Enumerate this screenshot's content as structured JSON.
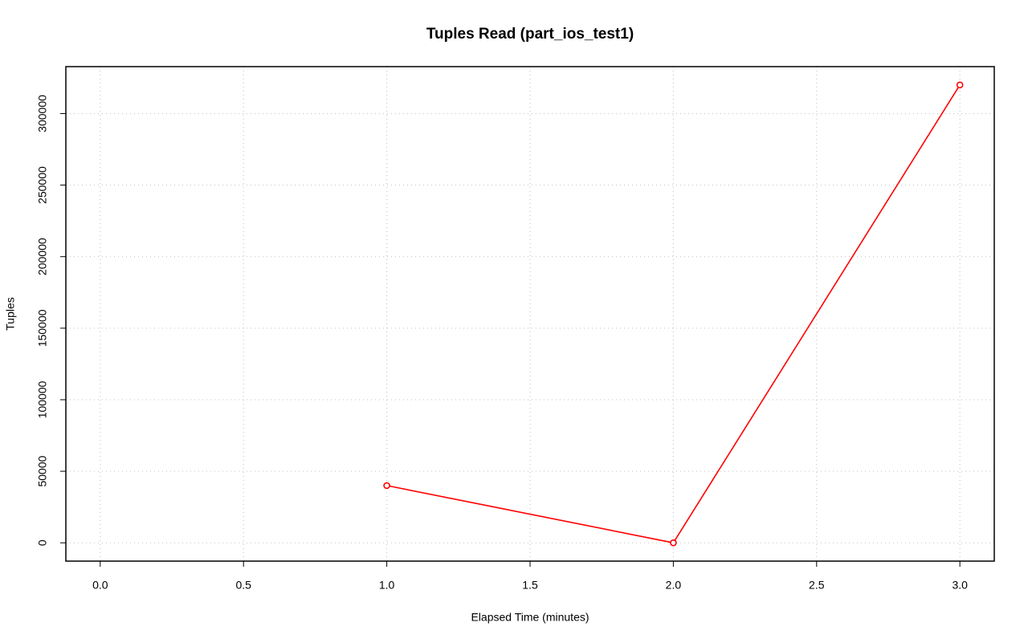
{
  "chart_data": {
    "type": "line",
    "title": "Tuples Read (part_ios_test1)",
    "xlabel": "Elapsed Time (minutes)",
    "ylabel": "Tuples",
    "x": [
      1,
      2,
      3
    ],
    "values": [
      40000,
      0,
      320000
    ],
    "color": "#ff0000",
    "xlim": [
      -0.12,
      3.12
    ],
    "ylim": [
      -12800,
      332800
    ],
    "xticks": [
      {
        "value": 0,
        "label": "0.0"
      },
      {
        "value": 0.5,
        "label": "0.5"
      },
      {
        "value": 1,
        "label": "1.0"
      },
      {
        "value": 1.5,
        "label": "1.5"
      },
      {
        "value": 2,
        "label": "2.0"
      },
      {
        "value": 2.5,
        "label": "2.5"
      },
      {
        "value": 3,
        "label": "3.0"
      }
    ],
    "yticks": [
      0,
      50000,
      100000,
      150000,
      200000,
      250000,
      300000
    ],
    "grid": true
  }
}
